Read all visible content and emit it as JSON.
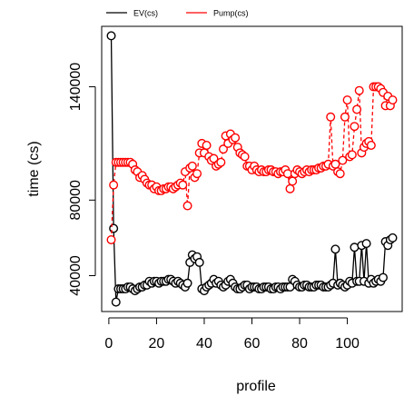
{
  "chart_data": {
    "type": "scatter",
    "title": "",
    "xlabel": "profile",
    "ylabel": "time (cs)",
    "xlim": [
      -3,
      123
    ],
    "ylim": [
      21000,
      172000
    ],
    "grid": false,
    "legend_position": "top",
    "x_ticks": [
      0,
      20,
      40,
      60,
      80,
      100
    ],
    "x_tick_labels": [
      "0",
      "20",
      "40",
      "60",
      "80",
      "100"
    ],
    "y_ticks": [
      40000,
      80000,
      140000
    ],
    "y_tick_labels": [
      "40000",
      "80000",
      "140000"
    ],
    "series": [
      {
        "name": "EV(cs)",
        "color": "#000000",
        "line_style": "solid",
        "x": [
          1,
          2,
          3,
          4,
          5,
          6,
          7,
          8,
          9,
          10,
          11,
          12,
          13,
          14,
          15,
          16,
          17,
          18,
          19,
          20,
          21,
          22,
          23,
          24,
          25,
          26,
          27,
          28,
          29,
          30,
          31,
          32,
          33,
          34,
          35,
          36,
          37,
          38,
          39,
          40,
          41,
          42,
          43,
          44,
          45,
          46,
          47,
          48,
          49,
          50,
          51,
          52,
          53,
          54,
          55,
          56,
          57,
          58,
          59,
          60,
          61,
          62,
          63,
          64,
          65,
          66,
          67,
          68,
          69,
          70,
          71,
          72,
          73,
          74,
          75,
          76,
          77,
          78,
          79,
          80,
          81,
          82,
          83,
          84,
          85,
          86,
          87,
          88,
          89,
          90,
          91,
          92,
          93,
          94,
          95,
          96,
          97,
          98,
          99,
          100,
          101,
          102,
          103,
          104,
          105,
          106,
          107,
          108,
          109,
          110,
          111,
          112,
          113,
          114,
          115,
          116,
          117,
          118,
          119
        ],
        "y": [
          167000,
          65000,
          26000,
          33000,
          33000,
          33000,
          33000,
          34000,
          34000,
          33000,
          32000,
          33000,
          34000,
          34000,
          35000,
          35000,
          37000,
          36000,
          37000,
          37000,
          36000,
          37000,
          37000,
          37000,
          38000,
          38000,
          37000,
          36000,
          37000,
          36000,
          35000,
          34000,
          36000,
          47000,
          51000,
          49000,
          50000,
          47000,
          33000,
          32000,
          34000,
          35000,
          36000,
          38000,
          36000,
          37000,
          35000,
          34000,
          35000,
          37000,
          38000,
          36000,
          34000,
          33000,
          33000,
          34000,
          35000,
          35000,
          33000,
          34000,
          34000,
          34000,
          33000,
          33000,
          34000,
          34000,
          34000,
          33000,
          33000,
          34000,
          34000,
          33000,
          34000,
          34000,
          34000,
          34000,
          38000,
          37000,
          35000,
          34000,
          34000,
          35000,
          35000,
          34000,
          34000,
          34000,
          35000,
          35000,
          35000,
          34000,
          34000,
          34000,
          35000,
          36000,
          54000,
          35000,
          36000,
          35000,
          34000,
          35000,
          37000,
          36000,
          55000,
          37000,
          37000,
          56000,
          37000,
          57000,
          36000,
          38000,
          36000,
          37000,
          38000,
          37000,
          39000,
          58000,
          56000,
          59000,
          60000
        ]
      },
      {
        "name": "Pump(cs)",
        "color": "#ff0000",
        "line_style": "dashed",
        "x": [
          1,
          2,
          3,
          4,
          5,
          6,
          7,
          8,
          9,
          10,
          11,
          12,
          13,
          14,
          15,
          16,
          17,
          18,
          19,
          20,
          21,
          22,
          23,
          24,
          25,
          26,
          27,
          28,
          29,
          30,
          31,
          32,
          33,
          34,
          35,
          36,
          37,
          38,
          39,
          40,
          41,
          42,
          43,
          44,
          45,
          46,
          47,
          48,
          49,
          50,
          51,
          52,
          53,
          54,
          55,
          56,
          57,
          58,
          59,
          60,
          61,
          62,
          63,
          64,
          65,
          66,
          67,
          68,
          69,
          70,
          71,
          72,
          73,
          74,
          75,
          76,
          77,
          78,
          79,
          80,
          81,
          82,
          83,
          84,
          85,
          86,
          87,
          88,
          89,
          90,
          91,
          92,
          93,
          94,
          95,
          96,
          97,
          98,
          99,
          100,
          101,
          102,
          103,
          104,
          105,
          106,
          107,
          108,
          109,
          110,
          111,
          112,
          113,
          114,
          115,
          116,
          117,
          118,
          119
        ],
        "y": [
          59000,
          88000,
          100000,
          100000,
          100000,
          100000,
          100000,
          100000,
          100000,
          99000,
          96000,
          95000,
          92000,
          93000,
          91000,
          89000,
          88000,
          88000,
          86000,
          87000,
          85000,
          85000,
          86000,
          86000,
          87000,
          87000,
          86000,
          87000,
          88000,
          89000,
          88000,
          95000,
          77000,
          97000,
          98000,
          92000,
          94000,
          105000,
          110000,
          105000,
          109000,
          103000,
          101000,
          102000,
          98000,
          99000,
          100000,
          107000,
          114000,
          110000,
          115000,
          112000,
          113000,
          108000,
          105000,
          104000,
          103000,
          98000,
          98000,
          96000,
          98000,
          96000,
          95000,
          96000,
          95000,
          95000,
          96000,
          96000,
          95000,
          95000,
          94000,
          95000,
          95000,
          96000,
          94000,
          86000,
          90000,
          94000,
          96000,
          95000,
          94000,
          95000,
          96000,
          95000,
          96000,
          96000,
          96000,
          97000,
          97000,
          98000,
          98000,
          99000,
          124000,
          98000,
          99000,
          95000,
          94000,
          101000,
          124000,
          133000,
          103000,
          104000,
          119000,
          128000,
          138000,
          105000,
          108000,
          110000,
          111000,
          109000,
          140000,
          140000,
          140000,
          139000,
          137000,
          130000,
          135000,
          130000,
          133000
        ]
      }
    ]
  }
}
